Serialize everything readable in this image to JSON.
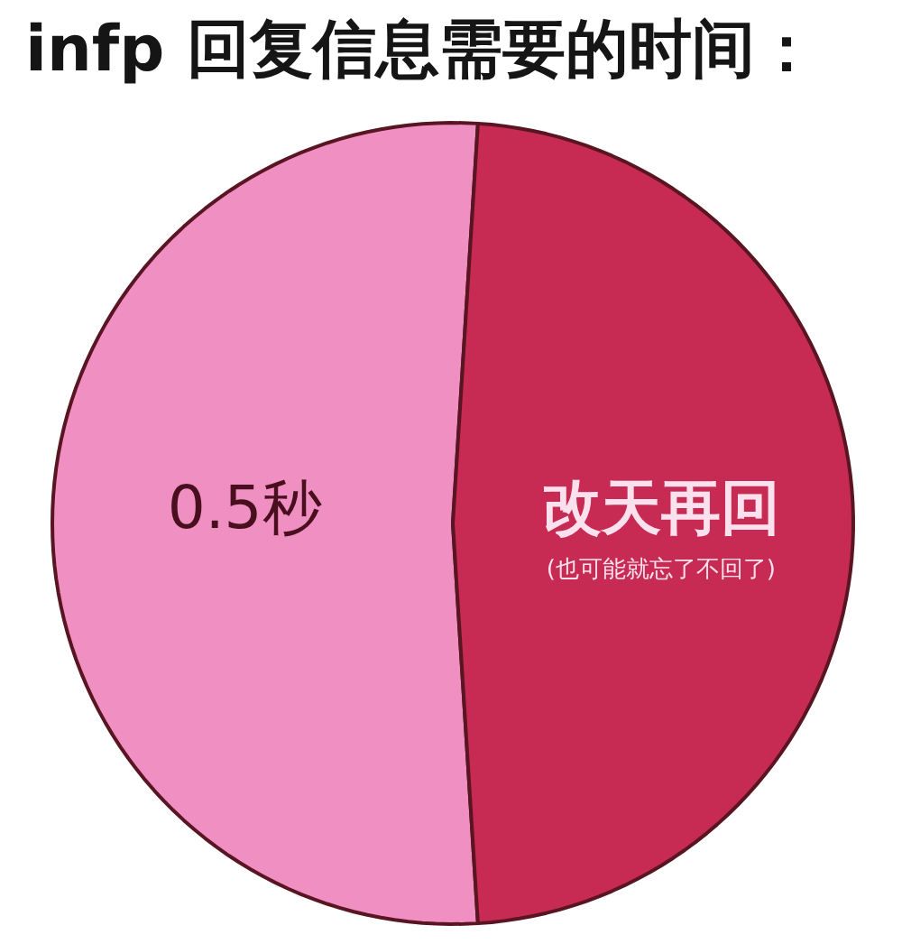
{
  "chart_data": {
    "type": "pie",
    "title": "infp 回复信息需要的时间：",
    "categories": [
      "0.5秒",
      "改天再回"
    ],
    "values": [
      52,
      48
    ],
    "colors": [
      "#ef8fc2",
      "#c72a52"
    ],
    "annotations": [
      "(也可能就忘了不回了)"
    ]
  }
}
